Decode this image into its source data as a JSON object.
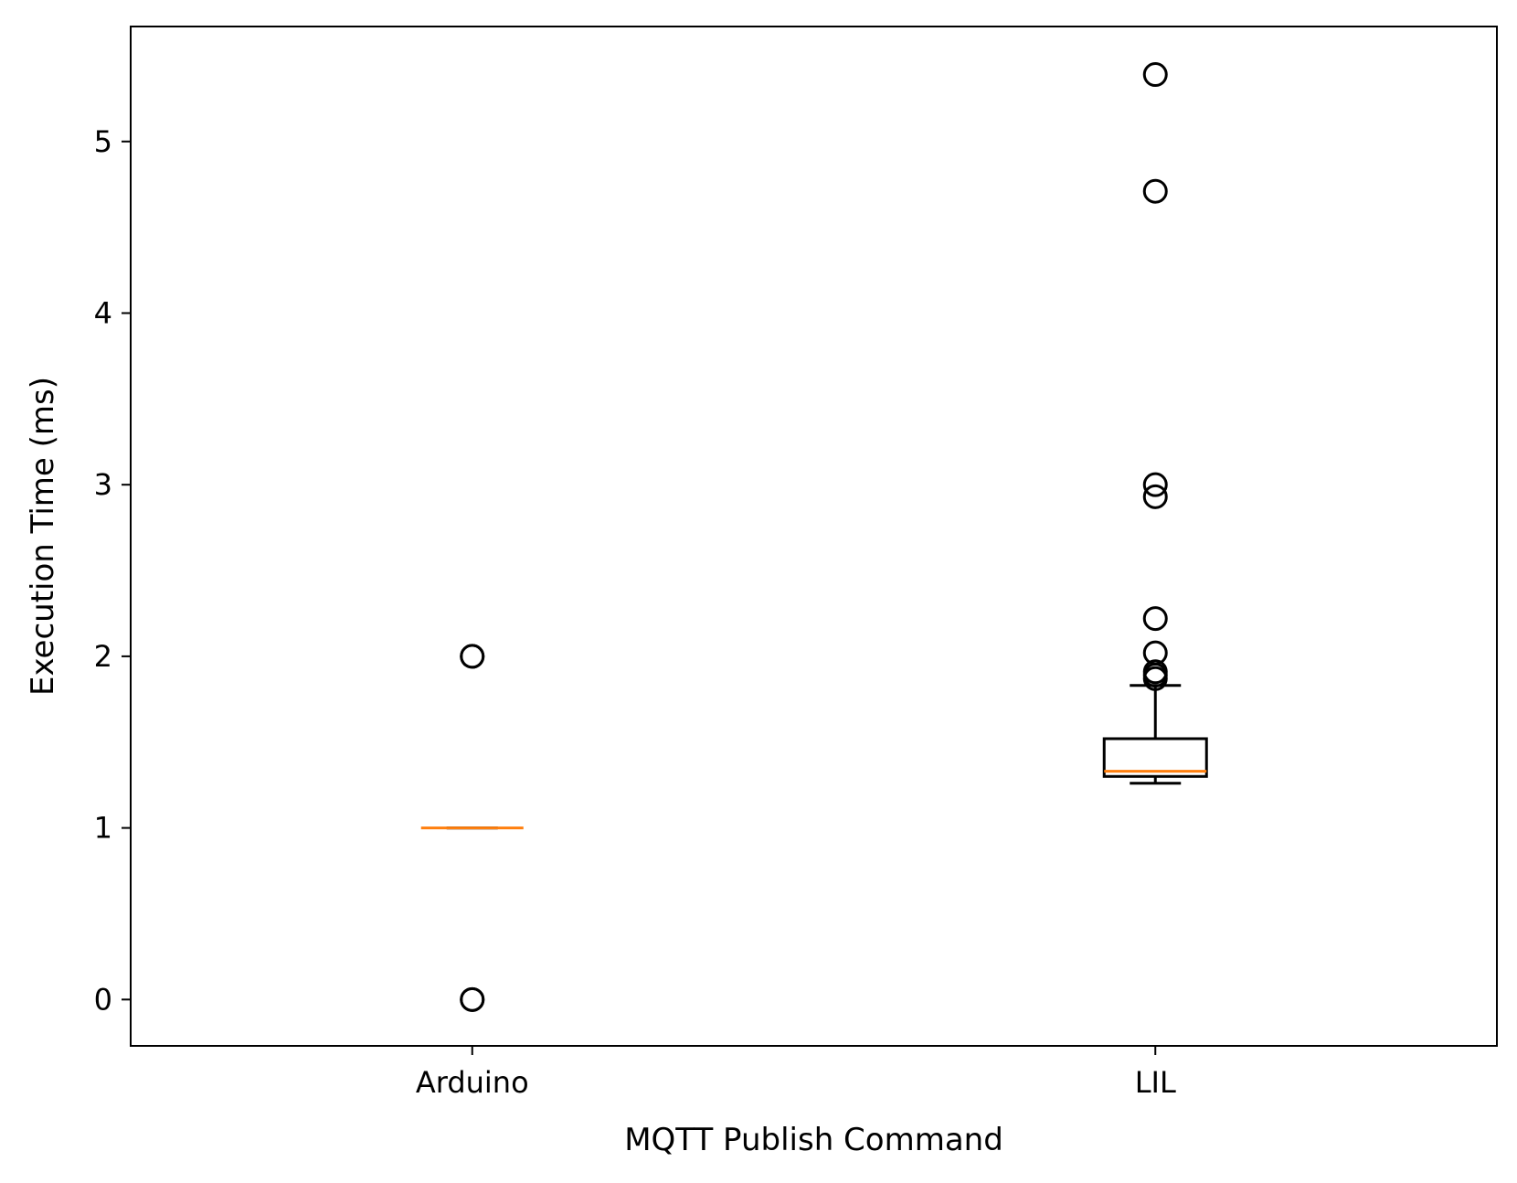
{
  "chart_data": {
    "type": "box",
    "title": "",
    "xlabel": "MQTT Publish Command",
    "ylabel": "Execution Time (ms)",
    "ylim": [
      -0.27,
      5.67
    ],
    "yticks": [
      0,
      1,
      2,
      3,
      4,
      5
    ],
    "categories": [
      "Arduino",
      "LIL"
    ],
    "grid": false,
    "colors": {
      "box": "#000000",
      "median": "#ff7f0e",
      "flier": "#000000"
    },
    "boxes": [
      {
        "name": "Arduino",
        "whisker_low": 1.0,
        "q1": 1.0,
        "median": 1.0,
        "q3": 1.0,
        "whisker_high": 1.0,
        "fliers": [
          0.0,
          0.0,
          2.0,
          2.0
        ]
      },
      {
        "name": "LIL",
        "whisker_low": 1.26,
        "q1": 1.3,
        "median": 1.33,
        "q3": 1.52,
        "whisker_high": 1.83,
        "fliers": [
          1.87,
          1.89,
          1.91,
          2.02,
          2.22,
          2.93,
          3.0,
          4.71,
          5.39
        ]
      }
    ]
  }
}
